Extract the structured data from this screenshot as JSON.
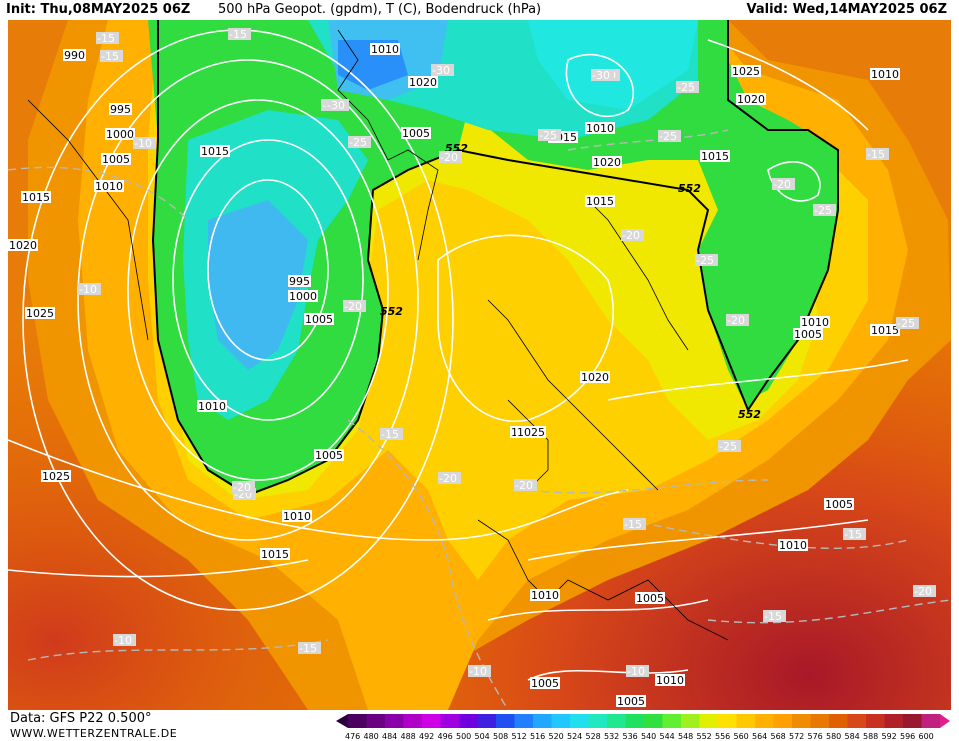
{
  "header": {
    "init": "Init: Thu,08MAY2025 06Z",
    "title": "500 hPa Geopot. (gpdm), T (C), Bodendruck (hPa)",
    "valid": "Valid: Wed,14MAY2025 06Z"
  },
  "footer": {
    "source": "Data: GFS P22 0.500°",
    "website": "WWW.WETTERZENTRALE.DE"
  },
  "legend": {
    "values": [
      "476",
      "480",
      "484",
      "488",
      "492",
      "496",
      "500",
      "504",
      "508",
      "512",
      "516",
      "520",
      "524",
      "528",
      "532",
      "536",
      "540",
      "544",
      "548",
      "552",
      "556",
      "560",
      "564",
      "568",
      "572",
      "576",
      "580",
      "584",
      "588",
      "592",
      "596",
      "600"
    ],
    "colors": [
      "#4b0060",
      "#6a0082",
      "#8a00a8",
      "#b000c8",
      "#d000e6",
      "#a000e0",
      "#7000e0",
      "#4020e0",
      "#2050f0",
      "#2080ff",
      "#20a8ff",
      "#20c8ff",
      "#20e0f0",
      "#20e8c0",
      "#20e890",
      "#20e060",
      "#30e040",
      "#60f030",
      "#a0f020",
      "#e0f000",
      "#ffe000",
      "#ffc800",
      "#ffb000",
      "#ffa000",
      "#f08c00",
      "#e87800",
      "#e06000",
      "#d84818",
      "#c83020",
      "#b02028",
      "#981830",
      "#c02080"
    ]
  },
  "map": {
    "geopotential_labels": [
      "552",
      "552",
      "552",
      "552"
    ],
    "pressure_labels": [
      "990",
      "995",
      "1000",
      "1005",
      "1010",
      "1015",
      "1020",
      "1025",
      "1010",
      "1020",
      "1015",
      "1005",
      "995",
      "1000",
      "1005",
      "1010",
      "1005",
      "1010",
      "1015",
      "1025",
      "1015",
      "1020",
      "1010",
      "1015",
      "1020",
      "1025",
      "1010",
      "1010",
      "1005",
      "1015",
      "1020",
      "1010",
      "1005",
      "1010",
      "1010",
      "1005",
      "1005",
      "1010",
      "1015",
      "1025",
      "1005"
    ],
    "temperature_labels": [
      "-15",
      "-15",
      "-30",
      "-35",
      "-30",
      "-25",
      "-25",
      "-20",
      "-30",
      "-25",
      "-25",
      "-20",
      "-15",
      "-20",
      "-25",
      "-20",
      "-25",
      "-25",
      "-20",
      "-15",
      "-20",
      "-20",
      "-25",
      "-15",
      "-15",
      "-20",
      "-15",
      "-15",
      "-10",
      "-10",
      "-10",
      "-10",
      "-10",
      "-20",
      "-20",
      "-15",
      "-30"
    ]
  }
}
